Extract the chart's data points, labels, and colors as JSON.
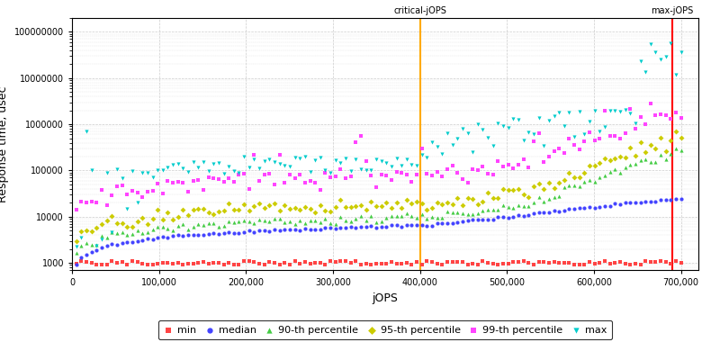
{
  "xlabel": "jOPS",
  "ylabel": "Response time, usec",
  "xlim": [
    0,
    720000
  ],
  "ylim_log": [
    700,
    200000000
  ],
  "critical_jops": 400000,
  "max_jops": 690000,
  "x_ticks": [
    0,
    100000,
    200000,
    300000,
    400000,
    500000,
    600000,
    700000
  ],
  "x_tick_labels": [
    "0",
    "100,000",
    "200,000",
    "300,000",
    "400,000",
    "500,000",
    "600,000",
    "700,000"
  ],
  "y_ticks": [
    1000,
    10000,
    100000,
    1000000,
    10000000,
    100000000
  ],
  "y_tick_labels": [
    "1000",
    "10000",
    "100000",
    "1000000",
    "10000000",
    "100000000"
  ],
  "colors": {
    "min": "#ff4444",
    "median": "#4444ff",
    "p90": "#44cc44",
    "p95": "#cccc00",
    "p99": "#ff44ff",
    "max": "#00cccc"
  },
  "critical_color": "#ffaa00",
  "max_color": "#ff0000",
  "legend_labels": [
    "min",
    "median",
    "90-th percentile",
    "95-th percentile",
    "99-th percentile",
    "max"
  ],
  "background_color": "#ffffff",
  "grid_color": "#cccccc"
}
